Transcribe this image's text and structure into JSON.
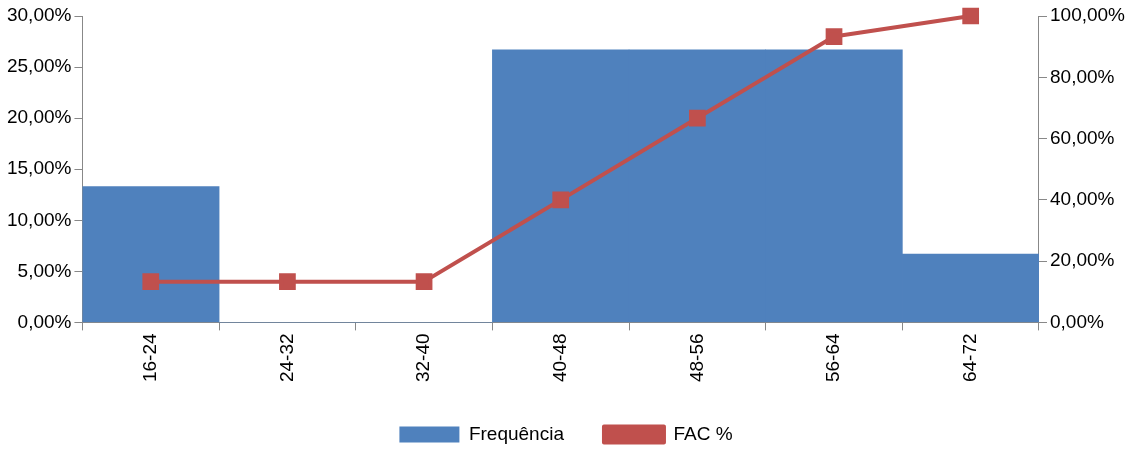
{
  "chart_data": {
    "type": "bar",
    "categories": [
      "16-24",
      "24-32",
      "32-40",
      "40-48",
      "48-56",
      "56-64",
      "64-72"
    ],
    "series": [
      {
        "name": "Frequência",
        "color": "#4f81bd",
        "values": [
          13.3,
          0,
          0,
          26.7,
          26.7,
          26.7,
          6.7
        ]
      },
      {
        "name": "FAC %",
        "type": "line",
        "axis": "y2",
        "color": "#c0504d",
        "values": [
          13.3,
          13.3,
          13.3,
          40,
          66.7,
          93.3,
          100
        ]
      }
    ],
    "ylim": [
      0,
      30
    ],
    "yticks": [
      {
        "value": 0,
        "label": "0,00%"
      },
      {
        "value": 5,
        "label": "5,00%"
      },
      {
        "value": 10,
        "label": "10,00%"
      },
      {
        "value": 15,
        "label": "15,00%"
      },
      {
        "value": 20,
        "label": "20,00%"
      },
      {
        "value": 25,
        "label": "25,00%"
      },
      {
        "value": 30,
        "label": "30,00%"
      }
    ],
    "y2lim": [
      0,
      100
    ],
    "y2ticks": [
      {
        "value": 0,
        "label": "0,00%"
      },
      {
        "value": 20,
        "label": "20,00%"
      },
      {
        "value": 40,
        "label": "40,00%"
      },
      {
        "value": 60,
        "label": "60,00%"
      },
      {
        "value": 80,
        "label": "80,00%"
      },
      {
        "value": 100,
        "label": "100,00%"
      }
    ],
    "grid": false,
    "legend": "bottom",
    "marker": "square",
    "line_style": "solid"
  }
}
